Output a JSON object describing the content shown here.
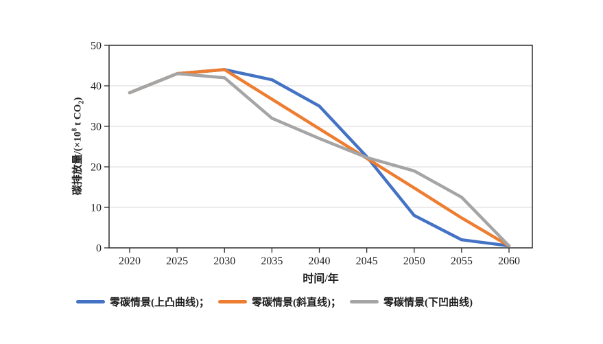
{
  "chart_data": {
    "type": "line",
    "title": "",
    "xlabel": "时间/年",
    "ylabel": "碳排放量/(×10⁸ t CO₂)",
    "ylabel_parts": {
      "pre": "碳排放量/(×10",
      "sup": "8",
      "mid": " t CO",
      "sub": "2",
      "post": ")"
    },
    "x": [
      2020,
      2025,
      2030,
      2035,
      2040,
      2045,
      2050,
      2055,
      2060
    ],
    "ylim": [
      0,
      50
    ],
    "ytick_step": 10,
    "yticks": [
      0,
      10,
      20,
      30,
      40,
      50
    ],
    "grid": "horizontal",
    "legend_position": "bottom",
    "series": [
      {
        "name": "零碳情景(上凸曲线)",
        "color": "#4472C4",
        "values": [
          38.3,
          43,
          44,
          41.5,
          35,
          22.5,
          8,
          2,
          0.5
        ]
      },
      {
        "name": "零碳情景(斜直线)",
        "color": "#ED7D31",
        "values": [
          38.3,
          43,
          44,
          36.7,
          29.4,
          22.1,
          14.8,
          7.4,
          0.5
        ]
      },
      {
        "name": "零碳情景(下凹曲线)",
        "color": "#A5A5A5",
        "values": [
          38.3,
          43,
          42,
          32,
          27,
          22.3,
          19,
          12.5,
          0.5
        ]
      }
    ],
    "legend_labels": [
      "零碳情景(上凸曲线)；",
      "零碳情景(斜直线)；",
      "零碳情景(下凹曲线)"
    ]
  },
  "colors": {
    "axis": "#2b2b2b",
    "grid": "#d9d9d9",
    "text": "#222222",
    "background": "#ffffff"
  }
}
